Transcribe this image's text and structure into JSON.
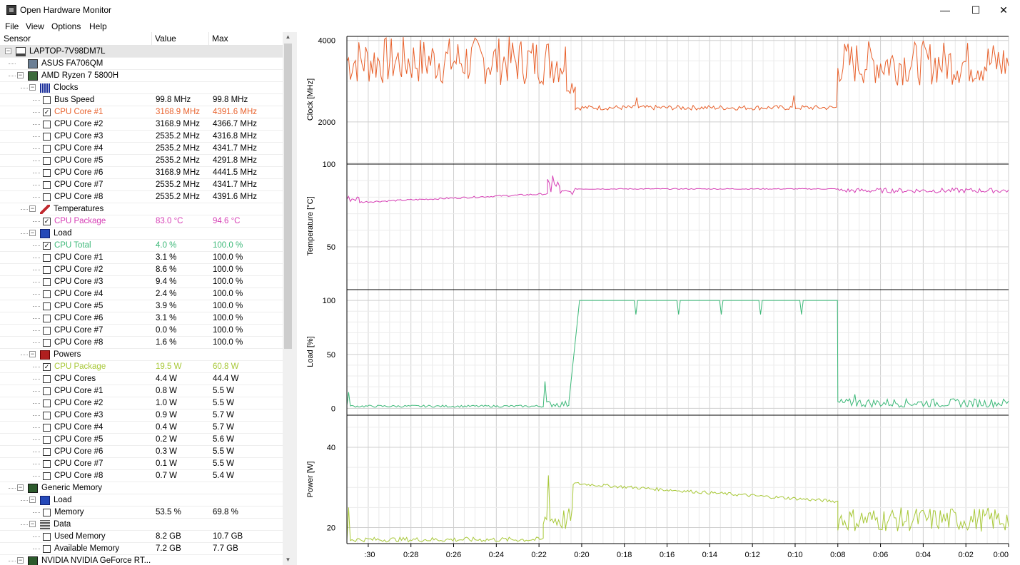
{
  "window": {
    "title": "Open Hardware Monitor",
    "minimize": "—",
    "maximize": "☐",
    "close": "✕"
  },
  "menu": [
    "File",
    "View",
    "Options",
    "Help"
  ],
  "columns": {
    "sensor": "Sensor",
    "value": "Value",
    "max": "Max"
  },
  "tree": [
    {
      "level": 0,
      "kind": "root",
      "label": "LAPTOP-7V98DM7L",
      "icon": "computer-icon",
      "expand": "−"
    },
    {
      "level": 1,
      "kind": "node",
      "label": "ASUS FA706QM",
      "icon": "motherboard-icon"
    },
    {
      "level": 1,
      "kind": "node",
      "label": "AMD Ryzen 7 5800H",
      "icon": "cpu-icon",
      "expand": "−"
    },
    {
      "level": 2,
      "kind": "group",
      "label": "Clocks",
      "icon": "clock-icon",
      "expand": "−"
    },
    {
      "level": 3,
      "kind": "sensor",
      "label": "Bus Speed",
      "value": "99.8 MHz",
      "max": "99.8 MHz",
      "checked": false
    },
    {
      "level": 3,
      "kind": "sensor",
      "label": "CPU Core #1",
      "value": "3168.9 MHz",
      "max": "4391.6 MHz",
      "checked": true,
      "color": "#e8612c"
    },
    {
      "level": 3,
      "kind": "sensor",
      "label": "CPU Core #2",
      "value": "3168.9 MHz",
      "max": "4366.7 MHz",
      "checked": false
    },
    {
      "level": 3,
      "kind": "sensor",
      "label": "CPU Core #3",
      "value": "2535.2 MHz",
      "max": "4316.8 MHz",
      "checked": false
    },
    {
      "level": 3,
      "kind": "sensor",
      "label": "CPU Core #4",
      "value": "2535.2 MHz",
      "max": "4341.7 MHz",
      "checked": false
    },
    {
      "level": 3,
      "kind": "sensor",
      "label": "CPU Core #5",
      "value": "2535.2 MHz",
      "max": "4291.8 MHz",
      "checked": false
    },
    {
      "level": 3,
      "kind": "sensor",
      "label": "CPU Core #6",
      "value": "3168.9 MHz",
      "max": "4441.5 MHz",
      "checked": false
    },
    {
      "level": 3,
      "kind": "sensor",
      "label": "CPU Core #7",
      "value": "2535.2 MHz",
      "max": "4341.7 MHz",
      "checked": false
    },
    {
      "level": 3,
      "kind": "sensor",
      "label": "CPU Core #8",
      "value": "2535.2 MHz",
      "max": "4391.6 MHz",
      "checked": false
    },
    {
      "level": 2,
      "kind": "group",
      "label": "Temperatures",
      "icon": "thermometer-icon",
      "expand": "−"
    },
    {
      "level": 3,
      "kind": "sensor",
      "label": "CPU Package",
      "value": "83.0 °C",
      "max": "94.6 °C",
      "checked": true,
      "color": "#d63fb5"
    },
    {
      "level": 2,
      "kind": "group",
      "label": "Load",
      "icon": "load-icon",
      "expand": "−"
    },
    {
      "level": 3,
      "kind": "sensor",
      "label": "CPU Total",
      "value": "4.0 %",
      "max": "100.0 %",
      "checked": true,
      "color": "#3cb878"
    },
    {
      "level": 3,
      "kind": "sensor",
      "label": "CPU Core #1",
      "value": "3.1 %",
      "max": "100.0 %",
      "checked": false
    },
    {
      "level": 3,
      "kind": "sensor",
      "label": "CPU Core #2",
      "value": "8.6 %",
      "max": "100.0 %",
      "checked": false
    },
    {
      "level": 3,
      "kind": "sensor",
      "label": "CPU Core #3",
      "value": "9.4 %",
      "max": "100.0 %",
      "checked": false
    },
    {
      "level": 3,
      "kind": "sensor",
      "label": "CPU Core #4",
      "value": "2.4 %",
      "max": "100.0 %",
      "checked": false
    },
    {
      "level": 3,
      "kind": "sensor",
      "label": "CPU Core #5",
      "value": "3.9 %",
      "max": "100.0 %",
      "checked": false
    },
    {
      "level": 3,
      "kind": "sensor",
      "label": "CPU Core #6",
      "value": "3.1 %",
      "max": "100.0 %",
      "checked": false
    },
    {
      "level": 3,
      "kind": "sensor",
      "label": "CPU Core #7",
      "value": "0.0 %",
      "max": "100.0 %",
      "checked": false
    },
    {
      "level": 3,
      "kind": "sensor",
      "label": "CPU Core #8",
      "value": "1.6 %",
      "max": "100.0 %",
      "checked": false
    },
    {
      "level": 2,
      "kind": "group",
      "label": "Powers",
      "icon": "power-icon",
      "expand": "−"
    },
    {
      "level": 3,
      "kind": "sensor",
      "label": "CPU Package",
      "value": "19.5 W",
      "max": "60.8 W",
      "checked": true,
      "color": "#a8c838"
    },
    {
      "level": 3,
      "kind": "sensor",
      "label": "CPU Cores",
      "value": "4.4 W",
      "max": "44.4 W",
      "checked": false
    },
    {
      "level": 3,
      "kind": "sensor",
      "label": "CPU Core #1",
      "value": "0.8 W",
      "max": "5.5 W",
      "checked": false
    },
    {
      "level": 3,
      "kind": "sensor",
      "label": "CPU Core #2",
      "value": "1.0 W",
      "max": "5.5 W",
      "checked": false
    },
    {
      "level": 3,
      "kind": "sensor",
      "label": "CPU Core #3",
      "value": "0.9 W",
      "max": "5.7 W",
      "checked": false
    },
    {
      "level": 3,
      "kind": "sensor",
      "label": "CPU Core #4",
      "value": "0.4 W",
      "max": "5.7 W",
      "checked": false
    },
    {
      "level": 3,
      "kind": "sensor",
      "label": "CPU Core #5",
      "value": "0.2 W",
      "max": "5.6 W",
      "checked": false
    },
    {
      "level": 3,
      "kind": "sensor",
      "label": "CPU Core #6",
      "value": "0.3 W",
      "max": "5.5 W",
      "checked": false
    },
    {
      "level": 3,
      "kind": "sensor",
      "label": "CPU Core #7",
      "value": "0.1 W",
      "max": "5.5 W",
      "checked": false
    },
    {
      "level": 3,
      "kind": "sensor",
      "label": "CPU Core #8",
      "value": "0.7 W",
      "max": "5.4 W",
      "checked": false
    },
    {
      "level": 1,
      "kind": "node",
      "label": "Generic Memory",
      "icon": "memory-icon",
      "expand": "−"
    },
    {
      "level": 2,
      "kind": "group",
      "label": "Load",
      "icon": "load-icon",
      "expand": "−"
    },
    {
      "level": 3,
      "kind": "sensor",
      "label": "Memory",
      "value": "53.5 %",
      "max": "69.8 %",
      "checked": false
    },
    {
      "level": 2,
      "kind": "group",
      "label": "Data",
      "icon": "data-icon",
      "expand": "−"
    },
    {
      "level": 3,
      "kind": "sensor",
      "label": "Used Memory",
      "value": "8.2 GB",
      "max": "10.7 GB",
      "checked": false
    },
    {
      "level": 3,
      "kind": "sensor",
      "label": "Available Memory",
      "value": "7.2 GB",
      "max": "7.7 GB",
      "checked": false
    },
    {
      "level": 1,
      "kind": "node",
      "label": "NVIDIA NVIDIA GeForce RT...",
      "icon": "gpu-icon",
      "expand": "−"
    }
  ],
  "chart_data": {
    "type": "line",
    "x_unit": "minutes before now",
    "x_range": [
      31,
      0
    ],
    "x_ticks": [
      ":30",
      "0:28",
      "0:26",
      "0:24",
      "0:22",
      "0:20",
      "0:18",
      "0:16",
      "0:14",
      "0:12",
      "0:10",
      "0:08",
      "0:06",
      "0:04",
      "0:02",
      "0:00"
    ],
    "x_tick_values": [
      30,
      28,
      26,
      24,
      22,
      20,
      18,
      16,
      14,
      12,
      10,
      8,
      6,
      4,
      2,
      0
    ],
    "panels": [
      {
        "ylabel": "Clock [MHz]",
        "yrange": [
          1000,
          4100
        ],
        "yticks": [
          2000,
          4000
        ],
        "color": "#e8612c",
        "series": "CPU Core #1",
        "segments": [
          {
            "from": 31,
            "to": 20.7,
            "base": 3500,
            "jitter": 600
          },
          {
            "from": 20.7,
            "to": 20.3,
            "base": 2900,
            "jitter": 200
          },
          {
            "from": 20.3,
            "to": 8.0,
            "base": 2350,
            "jitter": 60,
            "spikes": [
              [
                17.4,
                2600
              ],
              [
                10.1,
                2650
              ]
            ]
          },
          {
            "from": 8.0,
            "to": 0,
            "base": 3450,
            "jitter": 550
          }
        ]
      },
      {
        "ylabel": "Temperature [°C]",
        "yrange": [
          25,
          100
        ],
        "yticks": [
          50,
          100
        ],
        "color": "#d63fb5",
        "series": "CPU Package",
        "segments": [
          {
            "from": 31,
            "to": 30.4,
            "base": 79,
            "jitter": 2
          },
          {
            "from": 30.4,
            "to": 21.6,
            "base": 79,
            "jitter": 0.5,
            "ramp": [
              77,
              82
            ]
          },
          {
            "from": 21.6,
            "to": 21.0,
            "base": 86,
            "jitter": 5,
            "spikes": [
              [
                21.4,
                93
              ]
            ]
          },
          {
            "from": 21.0,
            "to": 20.3,
            "base": 83,
            "jitter": 1.5
          },
          {
            "from": 20.3,
            "to": 8.0,
            "base": 85,
            "jitter": 0.3
          },
          {
            "from": 8.0,
            "to": 0,
            "base": 84,
            "jitter": 1.5
          }
        ]
      },
      {
        "ylabel": "Load [%]",
        "yrange": [
          -5,
          110
        ],
        "yticks": [
          0,
          50,
          100
        ],
        "color": "#3cb878",
        "series": "CPU Total",
        "segments": [
          {
            "from": 31,
            "to": 21.8,
            "base": 2,
            "jitter": 1,
            "spikes": [
              [
                30.9,
                15
              ]
            ]
          },
          {
            "from": 21.8,
            "to": 20.6,
            "base": 4,
            "jitter": 3,
            "spikes": [
              [
                21.7,
                25
              ]
            ]
          },
          {
            "from": 20.6,
            "to": 20.1,
            "base": 50,
            "jitter": 0,
            "ramp": [
              6,
              100
            ]
          },
          {
            "from": 20.1,
            "to": 8.0,
            "base": 100,
            "jitter": 0,
            "dips": [
              17.5,
              15.5,
              13.5,
              11.6,
              9.7
            ]
          },
          {
            "from": 8.0,
            "to": 0,
            "base": 5,
            "jitter": 4,
            "spikes": [
              [
                7.2,
                13
              ]
            ]
          }
        ]
      },
      {
        "ylabel": "Power [W]",
        "yrange": [
          16,
          48
        ],
        "yticks": [
          20,
          40
        ],
        "color": "#a8c838",
        "series": "CPU Package",
        "segments": [
          {
            "from": 31,
            "to": 21.8,
            "base": 17,
            "jitter": 0.6,
            "spikes": [
              [
                30.9,
                25
              ]
            ]
          },
          {
            "from": 21.8,
            "to": 20.4,
            "base": 22,
            "jitter": 3,
            "spikes": [
              [
                21.6,
                33
              ]
            ]
          },
          {
            "from": 20.4,
            "to": 8.0,
            "base": 27,
            "jitter": 0.4,
            "ramp": [
              31,
              26.5
            ]
          },
          {
            "from": 8.0,
            "to": 0,
            "base": 22,
            "jitter": 3
          }
        ]
      }
    ]
  }
}
